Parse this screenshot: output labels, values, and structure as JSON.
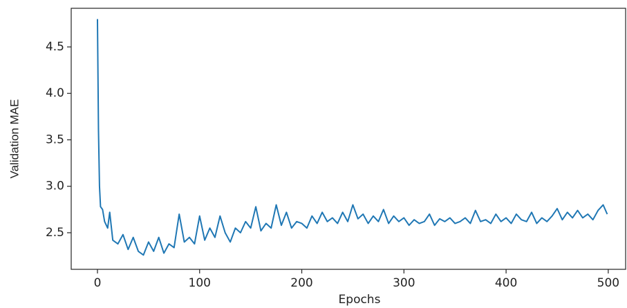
{
  "chart_data": {
    "type": "line",
    "xlabel": "Epochs",
    "ylabel": "Validation MAE",
    "x": [
      0,
      1,
      2,
      3,
      5,
      7,
      10,
      12,
      15,
      20,
      25,
      30,
      35,
      40,
      45,
      50,
      55,
      60,
      65,
      70,
      75,
      80,
      85,
      90,
      95,
      100,
      105,
      110,
      115,
      120,
      125,
      130,
      135,
      140,
      145,
      150,
      155,
      160,
      165,
      170,
      175,
      180,
      185,
      190,
      195,
      200,
      205,
      210,
      215,
      220,
      225,
      230,
      235,
      240,
      245,
      250,
      255,
      260,
      265,
      270,
      275,
      280,
      285,
      290,
      295,
      300,
      305,
      310,
      315,
      320,
      325,
      330,
      335,
      340,
      345,
      350,
      355,
      360,
      365,
      370,
      375,
      380,
      385,
      390,
      395,
      400,
      405,
      410,
      415,
      420,
      425,
      430,
      435,
      440,
      445,
      450,
      455,
      460,
      465,
      470,
      475,
      480,
      485,
      490,
      495,
      499
    ],
    "series": [
      {
        "name": "Validation MAE",
        "color": "#1f77b4",
        "values": [
          4.8,
          3.6,
          3.0,
          2.78,
          2.75,
          2.62,
          2.55,
          2.72,
          2.42,
          2.38,
          2.48,
          2.32,
          2.45,
          2.3,
          2.26,
          2.4,
          2.3,
          2.45,
          2.28,
          2.38,
          2.34,
          2.7,
          2.4,
          2.45,
          2.38,
          2.68,
          2.42,
          2.55,
          2.45,
          2.68,
          2.5,
          2.4,
          2.55,
          2.5,
          2.62,
          2.55,
          2.78,
          2.52,
          2.6,
          2.55,
          2.8,
          2.58,
          2.72,
          2.55,
          2.62,
          2.6,
          2.55,
          2.68,
          2.6,
          2.72,
          2.62,
          2.66,
          2.6,
          2.72,
          2.62,
          2.8,
          2.65,
          2.7,
          2.6,
          2.68,
          2.62,
          2.75,
          2.6,
          2.68,
          2.62,
          2.66,
          2.58,
          2.64,
          2.6,
          2.62,
          2.7,
          2.58,
          2.65,
          2.62,
          2.66,
          2.6,
          2.62,
          2.66,
          2.6,
          2.74,
          2.62,
          2.64,
          2.6,
          2.7,
          2.62,
          2.66,
          2.6,
          2.7,
          2.64,
          2.62,
          2.72,
          2.6,
          2.66,
          2.62,
          2.68,
          2.76,
          2.64,
          2.72,
          2.66,
          2.74,
          2.66,
          2.7,
          2.64,
          2.74,
          2.8,
          2.7
        ]
      }
    ],
    "xlim": [
      -25.7,
      517
    ],
    "ylim": [
      2.106,
      4.916
    ],
    "xticks": [
      0,
      100,
      200,
      300,
      400,
      500
    ],
    "yticks": [
      2.5,
      {
        "value": 3.0,
        "label": "3.0"
      },
      3.5,
      {
        "value": 4.0,
        "label": "4.0"
      },
      4.5
    ],
    "grid": false
  }
}
